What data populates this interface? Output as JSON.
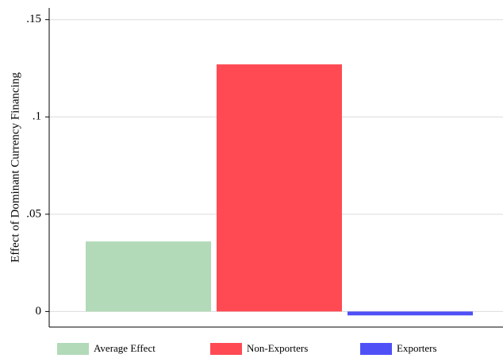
{
  "chart_data": {
    "type": "bar",
    "y_label": "Effect of Dominant Currency Financing",
    "categories": [
      null
    ],
    "series": [
      {
        "name": "Average Effect",
        "color": "#b2dab8",
        "values": [
          0.036
        ]
      },
      {
        "name": "Non-Exporters",
        "color": "#ff4a53",
        "values": [
          0.127
        ]
      },
      {
        "name": "Exporters",
        "color": "#5050f7",
        "values": [
          -0.002
        ]
      }
    ],
    "ylim": [
      -0.008,
      0.156
    ],
    "yticks": [
      0,
      {
        "value": 0.05,
        "label": ".05"
      },
      {
        "value": 0.1,
        "label": ".1"
      },
      {
        "value": 0.15,
        "label": ".15"
      }
    ],
    "grid": true,
    "legend": "bottom"
  }
}
